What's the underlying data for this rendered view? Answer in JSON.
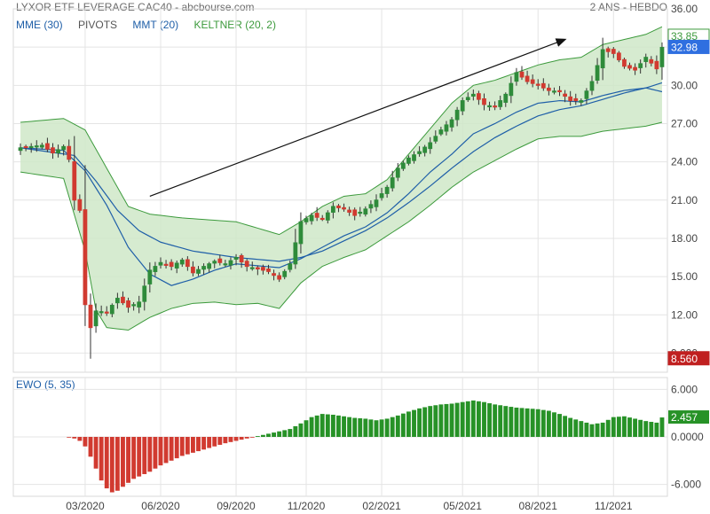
{
  "header": {
    "title": "LYXOR ETF LEVERAGE CAC40 - abcbourse.com",
    "period": "2 ANS - HEBDO"
  },
  "legend": [
    {
      "label": "MME (30)",
      "color": "#1f5fa8"
    },
    {
      "label": "PIVOTS",
      "color": "#555555"
    },
    {
      "label": "MMT (20)",
      "color": "#1f5fa8"
    },
    {
      "label": "KELTNER (20, 2)",
      "color": "#3c9a3c"
    }
  ],
  "colors": {
    "up": "#2e8b3a",
    "down": "#d13a30",
    "keltner_fill": "#cfe8c8",
    "keltner_line": "#3c9a3c",
    "ma_line": "#1f5fa8",
    "grid": "#e4e4e4"
  },
  "chart_data": [
    {
      "type": "candlestick",
      "title": "LYXOR ETF LEVERAGE CAC40",
      "ylim": [
        7.5,
        36
      ],
      "y_ticks": [
        "9.000",
        "12.00",
        "15.00",
        "18.00",
        "21.00",
        "24.00",
        "27.00",
        "30.00",
        "33.00",
        "36.00"
      ],
      "x_ticks": [
        "03/2020",
        "06/2020",
        "09/2020",
        "11/2020",
        "02/2021",
        "05/2021",
        "08/2021",
        "11/2021"
      ],
      "x_tick_weeks": [
        12,
        26,
        40,
        53,
        67,
        82,
        96,
        110
      ],
      "n_weeks": 120,
      "close_anchors": [
        [
          0,
          25.1
        ],
        [
          4,
          25.3
        ],
        [
          6,
          24.7
        ],
        [
          8,
          25.2
        ],
        [
          9,
          24.2
        ],
        [
          10,
          21.0
        ],
        [
          11,
          20.2
        ],
        [
          12,
          12.8
        ],
        [
          13,
          11.0
        ],
        [
          14,
          12.3
        ],
        [
          16,
          12.2
        ],
        [
          18,
          13.3
        ],
        [
          20,
          12.6
        ],
        [
          22,
          13.0
        ],
        [
          24,
          15.5
        ],
        [
          26,
          16.1
        ],
        [
          28,
          15.8
        ],
        [
          30,
          16.3
        ],
        [
          32,
          15.3
        ],
        [
          34,
          15.8
        ],
        [
          36,
          16.2
        ],
        [
          38,
          16.0
        ],
        [
          40,
          16.5
        ],
        [
          42,
          15.8
        ],
        [
          44,
          15.6
        ],
        [
          46,
          15.4
        ],
        [
          48,
          14.8
        ],
        [
          50,
          16.0
        ],
        [
          52,
          19.3
        ],
        [
          54,
          19.8
        ],
        [
          56,
          19.5
        ],
        [
          58,
          20.5
        ],
        [
          60,
          20.3
        ],
        [
          62,
          19.8
        ],
        [
          64,
          20.3
        ],
        [
          66,
          21.0
        ],
        [
          68,
          22.0
        ],
        [
          70,
          23.5
        ],
        [
          72,
          24.3
        ],
        [
          74,
          24.8
        ],
        [
          76,
          25.5
        ],
        [
          78,
          26.5
        ],
        [
          80,
          27.3
        ],
        [
          82,
          28.8
        ],
        [
          84,
          29.3
        ],
        [
          86,
          28.5
        ],
        [
          88,
          28.3
        ],
        [
          90,
          29.3
        ],
        [
          92,
          31.0
        ],
        [
          94,
          30.3
        ],
        [
          96,
          30.0
        ],
        [
          98,
          29.6
        ],
        [
          100,
          29.5
        ],
        [
          102,
          28.8
        ],
        [
          104,
          28.8
        ],
        [
          106,
          30.3
        ],
        [
          108,
          32.8
        ],
        [
          110,
          32.5
        ],
        [
          112,
          31.5
        ],
        [
          114,
          31.2
        ],
        [
          116,
          32.2
        ],
        [
          118,
          31.3
        ],
        [
          119,
          32.98
        ]
      ],
      "keltner_upper_anchors": [
        [
          0,
          27.1
        ],
        [
          8,
          27.4
        ],
        [
          12,
          26.5
        ],
        [
          16,
          23.5
        ],
        [
          20,
          20.5
        ],
        [
          24,
          19.9
        ],
        [
          30,
          19.6
        ],
        [
          40,
          19.3
        ],
        [
          48,
          18.3
        ],
        [
          52,
          19.3
        ],
        [
          56,
          20.5
        ],
        [
          60,
          21.3
        ],
        [
          64,
          21.5
        ],
        [
          68,
          22.6
        ],
        [
          72,
          24.6
        ],
        [
          76,
          26.6
        ],
        [
          80,
          28.6
        ],
        [
          84,
          30.0
        ],
        [
          88,
          30.4
        ],
        [
          92,
          31.0
        ],
        [
          96,
          31.6
        ],
        [
          100,
          32.0
        ],
        [
          104,
          32.2
        ],
        [
          108,
          33.2
        ],
        [
          112,
          33.6
        ],
        [
          116,
          34.0
        ],
        [
          119,
          34.6
        ]
      ],
      "keltner_lower_anchors": [
        [
          0,
          23.2
        ],
        [
          8,
          22.7
        ],
        [
          12,
          17.0
        ],
        [
          14,
          12.4
        ],
        [
          16,
          11.0
        ],
        [
          20,
          10.8
        ],
        [
          24,
          11.8
        ],
        [
          28,
          12.5
        ],
        [
          32,
          12.9
        ],
        [
          36,
          13.0
        ],
        [
          40,
          12.8
        ],
        [
          44,
          12.9
        ],
        [
          48,
          12.5
        ],
        [
          52,
          14.5
        ],
        [
          56,
          15.8
        ],
        [
          60,
          16.5
        ],
        [
          64,
          17.1
        ],
        [
          68,
          18.2
        ],
        [
          72,
          19.3
        ],
        [
          76,
          20.6
        ],
        [
          80,
          22.0
        ],
        [
          84,
          23.2
        ],
        [
          88,
          24.1
        ],
        [
          92,
          25.0
        ],
        [
          96,
          25.8
        ],
        [
          100,
          26.0
        ],
        [
          104,
          26.0
        ],
        [
          108,
          26.4
        ],
        [
          112,
          26.6
        ],
        [
          116,
          26.8
        ],
        [
          119,
          27.1
        ]
      ],
      "mme30_anchors": [
        [
          0,
          25.1
        ],
        [
          10,
          24.5
        ],
        [
          14,
          22.5
        ],
        [
          18,
          20.2
        ],
        [
          22,
          18.6
        ],
        [
          26,
          17.7
        ],
        [
          32,
          17.0
        ],
        [
          40,
          16.5
        ],
        [
          48,
          16.2
        ],
        [
          52,
          16.5
        ],
        [
          56,
          17.0
        ],
        [
          60,
          17.8
        ],
        [
          64,
          18.6
        ],
        [
          68,
          19.6
        ],
        [
          72,
          20.8
        ],
        [
          76,
          22.1
        ],
        [
          80,
          23.5
        ],
        [
          84,
          24.8
        ],
        [
          88,
          25.9
        ],
        [
          92,
          26.8
        ],
        [
          96,
          27.6
        ],
        [
          100,
          28.1
        ],
        [
          104,
          28.4
        ],
        [
          108,
          28.9
        ],
        [
          112,
          29.4
        ],
        [
          116,
          29.8
        ],
        [
          119,
          30.2
        ]
      ],
      "mmt20_anchors": [
        [
          0,
          25.1
        ],
        [
          8,
          24.9
        ],
        [
          12,
          23.3
        ],
        [
          16,
          20.6
        ],
        [
          20,
          17.3
        ],
        [
          24,
          15.2
        ],
        [
          28,
          14.3
        ],
        [
          32,
          14.8
        ],
        [
          36,
          15.5
        ],
        [
          40,
          16.0
        ],
        [
          48,
          15.7
        ],
        [
          52,
          16.4
        ],
        [
          56,
          17.3
        ],
        [
          60,
          18.2
        ],
        [
          64,
          18.9
        ],
        [
          68,
          20.0
        ],
        [
          72,
          21.5
        ],
        [
          76,
          23.2
        ],
        [
          80,
          24.6
        ],
        [
          84,
          26.2
        ],
        [
          88,
          27.0
        ],
        [
          92,
          27.9
        ],
        [
          96,
          28.6
        ],
        [
          100,
          28.8
        ],
        [
          104,
          28.7
        ],
        [
          108,
          29.2
        ],
        [
          112,
          29.6
        ],
        [
          116,
          29.8
        ],
        [
          119,
          29.5
        ]
      ],
      "arrow": {
        "from": [
          24,
          21.3
        ],
        "to": [
          101,
          33.6
        ]
      },
      "price_labels": [
        {
          "text": "33.85",
          "value": 33.85,
          "color": "#3c9a3c",
          "bg": "#ffffff"
        },
        {
          "text": "32.98",
          "value": 32.98,
          "color": "#ffffff",
          "bg": "#2f6fe0"
        },
        {
          "text": "8.560",
          "value": 8.56,
          "color": "#ffffff",
          "bg": "#c02020"
        }
      ]
    },
    {
      "type": "bar",
      "title": "EWO (5, 35)",
      "ylim": [
        -7.5,
        7.5
      ],
      "y_ticks": [
        "6.000",
        "0.0000",
        "-6.000"
      ],
      "y_tick_values": [
        6,
        0,
        -6
      ],
      "anchors": [
        [
          9,
          -0.05
        ],
        [
          10,
          -0.2
        ],
        [
          11,
          -0.5
        ],
        [
          12,
          -1.2
        ],
        [
          13,
          -2.5
        ],
        [
          14,
          -4.0
        ],
        [
          15,
          -5.5
        ],
        [
          16,
          -6.5
        ],
        [
          17,
          -7.0
        ],
        [
          18,
          -6.8
        ],
        [
          19,
          -6.3
        ],
        [
          20,
          -5.8
        ],
        [
          21,
          -5.3
        ],
        [
          22,
          -5.0
        ],
        [
          24,
          -4.4
        ],
        [
          26,
          -3.6
        ],
        [
          28,
          -3.0
        ],
        [
          30,
          -2.4
        ],
        [
          32,
          -2.0
        ],
        [
          34,
          -1.6
        ],
        [
          36,
          -1.2
        ],
        [
          38,
          -0.8
        ],
        [
          40,
          -0.5
        ],
        [
          42,
          -0.2
        ],
        [
          44,
          0.1
        ],
        [
          46,
          0.4
        ],
        [
          48,
          0.7
        ],
        [
          50,
          1.0
        ],
        [
          52,
          1.7
        ],
        [
          54,
          2.5
        ],
        [
          56,
          2.9
        ],
        [
          58,
          2.8
        ],
        [
          60,
          2.6
        ],
        [
          62,
          2.4
        ],
        [
          64,
          2.3
        ],
        [
          66,
          2.1
        ],
        [
          68,
          2.3
        ],
        [
          70,
          2.7
        ],
        [
          72,
          3.2
        ],
        [
          74,
          3.6
        ],
        [
          76,
          3.9
        ],
        [
          78,
          4.1
        ],
        [
          80,
          4.2
        ],
        [
          82,
          4.4
        ],
        [
          84,
          4.6
        ],
        [
          86,
          4.4
        ],
        [
          88,
          4.1
        ],
        [
          90,
          3.9
        ],
        [
          92,
          3.7
        ],
        [
          94,
          3.6
        ],
        [
          96,
          3.5
        ],
        [
          98,
          3.3
        ],
        [
          100,
          2.9
        ],
        [
          102,
          2.4
        ],
        [
          104,
          2.0
        ],
        [
          106,
          1.6
        ],
        [
          108,
          1.8
        ],
        [
          110,
          2.5
        ],
        [
          112,
          2.6
        ],
        [
          114,
          2.3
        ],
        [
          116,
          2.0
        ],
        [
          118,
          1.8
        ],
        [
          119,
          2.457
        ]
      ],
      "last_value_label": {
        "text": "2.457",
        "value": 2.457
      }
    }
  ]
}
